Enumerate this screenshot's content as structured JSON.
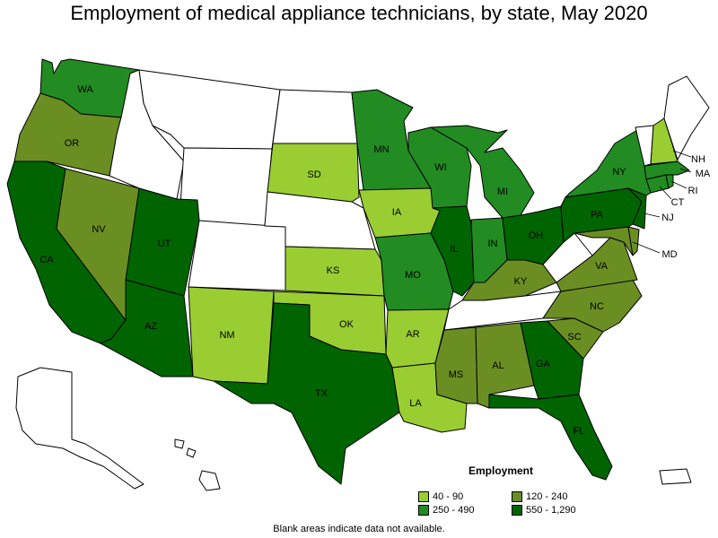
{
  "title": "Employment of medical appliance technicians, by state, May 2020",
  "footnote": "Blank areas indicate data not available.",
  "colors": {
    "no_data": "#ffffff",
    "c1": "#9acd32",
    "c2": "#6b8e23",
    "c3": "#228b22",
    "c4": "#006400"
  },
  "legend": {
    "title": "Employment",
    "items": [
      {
        "key": "c1",
        "label": "40 - 90"
      },
      {
        "key": "c2",
        "label": "120 - 240"
      },
      {
        "key": "c3",
        "label": "250 - 490"
      },
      {
        "key": "c4",
        "label": "550 - 1,290"
      }
    ]
  },
  "states": {
    "WA": "c3",
    "OR": "c2",
    "CA": "c4",
    "NV": "c2",
    "ID": "none",
    "MT": "none",
    "WY": "none",
    "UT": "c4",
    "AZ": "c4",
    "CO": "none",
    "NM": "c1",
    "ND": "none",
    "SD": "c1",
    "NE": "none",
    "KS": "c1",
    "OK": "c1",
    "TX": "c4",
    "MN": "c3",
    "IA": "c1",
    "MO": "c3",
    "AR": "c1",
    "LA": "c1",
    "WI": "c3",
    "IL": "c4",
    "MI": "c3",
    "IN": "c3",
    "OH": "c4",
    "KY": "c2",
    "TN": "none",
    "MS": "c2",
    "AL": "c2",
    "GA": "c4",
    "FL": "c4",
    "SC": "c2",
    "NC": "c2",
    "VA": "c2",
    "WV": "none",
    "MD": "c2",
    "DE": "c2",
    "PA": "c4",
    "NJ": "c4",
    "NY": "c3",
    "CT": "c3",
    "RI": "c3",
    "MA": "c3",
    "VT": "none",
    "NH": "c1",
    "ME": "none",
    "AK": "none",
    "HI": "none",
    "PR": "none"
  },
  "state_labels": [
    "WA",
    "OR",
    "CA",
    "NV",
    "UT",
    "AZ",
    "NM",
    "SD",
    "KS",
    "OK",
    "TX",
    "MN",
    "IA",
    "MO",
    "AR",
    "LA",
    "WI",
    "IL",
    "MI",
    "IN",
    "OH",
    "KY",
    "MS",
    "AL",
    "GA",
    "FL",
    "SC",
    "NC",
    "VA",
    "PA",
    "NY",
    "NH",
    "MA",
    "RI",
    "CT",
    "NJ",
    "MD"
  ]
}
